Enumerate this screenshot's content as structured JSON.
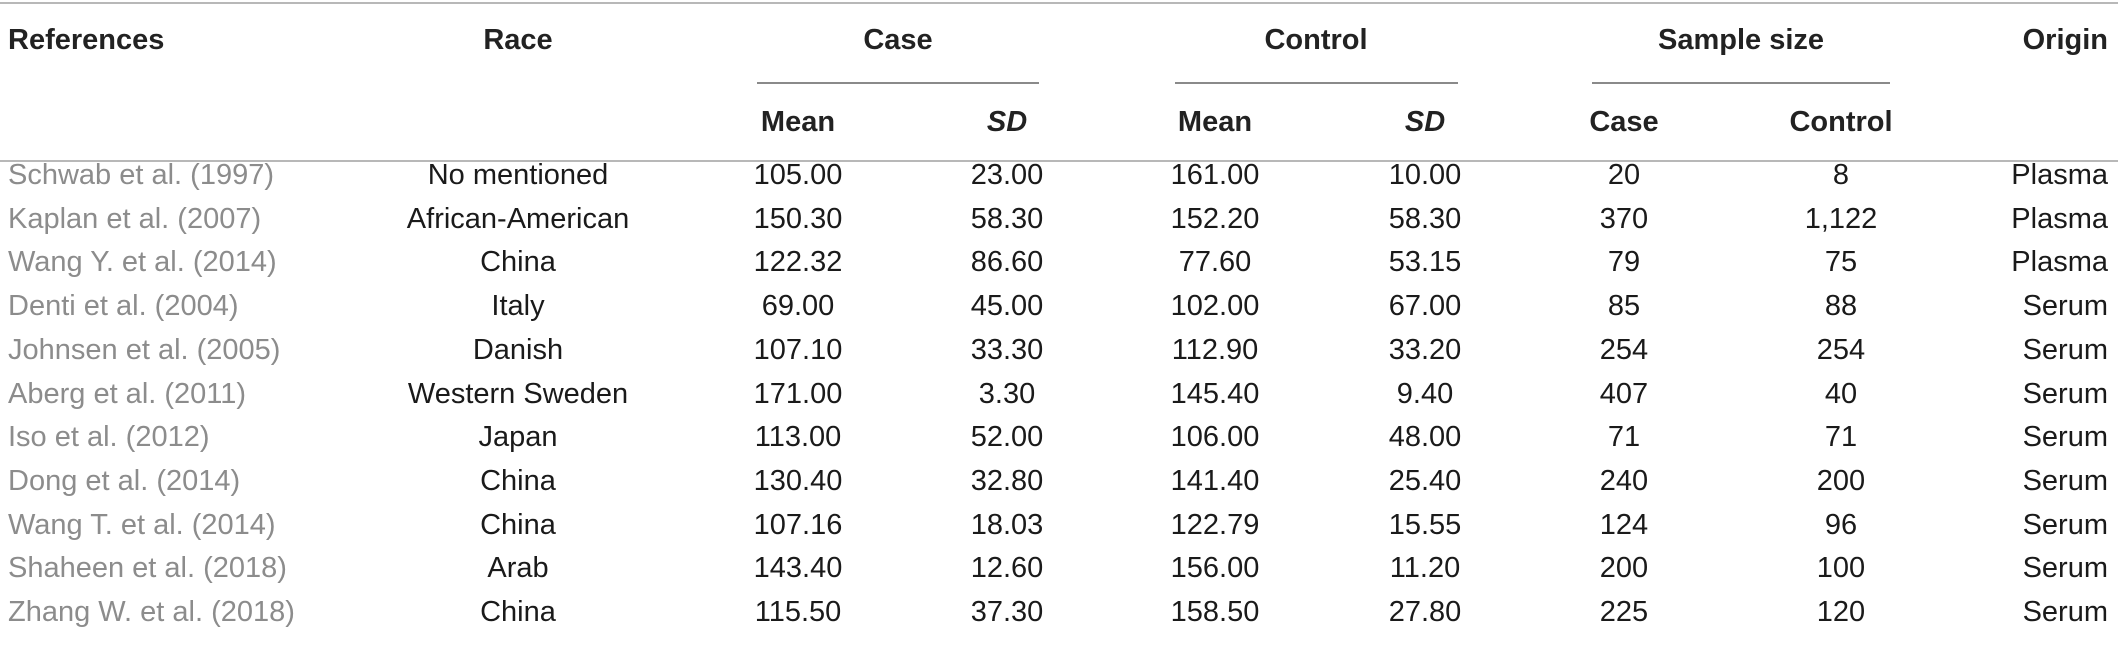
{
  "table": {
    "headers": {
      "references": "References",
      "race": "Race",
      "case": "Case",
      "control": "Control",
      "sample_size": "Sample size",
      "origin": "Origin",
      "mean": "Mean",
      "sd": "SD",
      "case_sub": "Case",
      "control_sub": "Control"
    },
    "rows": [
      {
        "ref": "Schwab et al. (1997)",
        "race": "No mentioned",
        "case_mean": "105.00",
        "case_sd": "23.00",
        "ctrl_mean": "161.00",
        "ctrl_sd": "10.00",
        "n_case": "20",
        "n_ctrl": "8",
        "origin": "Plasma"
      },
      {
        "ref": "Kaplan et al. (2007)",
        "race": "African-American",
        "case_mean": "150.30",
        "case_sd": "58.30",
        "ctrl_mean": "152.20",
        "ctrl_sd": "58.30",
        "n_case": "370",
        "n_ctrl": "1,122",
        "origin": "Plasma"
      },
      {
        "ref": "Wang Y. et al. (2014)",
        "race": "China",
        "case_mean": "122.32",
        "case_sd": "86.60",
        "ctrl_mean": "77.60",
        "ctrl_sd": "53.15",
        "n_case": "79",
        "n_ctrl": "75",
        "origin": "Plasma"
      },
      {
        "ref": "Denti et al. (2004)",
        "race": "Italy",
        "case_mean": "69.00",
        "case_sd": "45.00",
        "ctrl_mean": "102.00",
        "ctrl_sd": "67.00",
        "n_case": "85",
        "n_ctrl": "88",
        "origin": "Serum"
      },
      {
        "ref": "Johnsen et al. (2005)",
        "race": "Danish",
        "case_mean": "107.10",
        "case_sd": "33.30",
        "ctrl_mean": "112.90",
        "ctrl_sd": "33.20",
        "n_case": "254",
        "n_ctrl": "254",
        "origin": "Serum"
      },
      {
        "ref": "Aberg et al. (2011)",
        "race": "Western Sweden",
        "case_mean": "171.00",
        "case_sd": "3.30",
        "ctrl_mean": "145.40",
        "ctrl_sd": "9.40",
        "n_case": "407",
        "n_ctrl": "40",
        "origin": "Serum"
      },
      {
        "ref": "Iso et al. (2012)",
        "race": "Japan",
        "case_mean": "113.00",
        "case_sd": "52.00",
        "ctrl_mean": "106.00",
        "ctrl_sd": "48.00",
        "n_case": "71",
        "n_ctrl": "71",
        "origin": "Serum"
      },
      {
        "ref": "Dong et al. (2014)",
        "race": "China",
        "case_mean": "130.40",
        "case_sd": "32.80",
        "ctrl_mean": "141.40",
        "ctrl_sd": "25.40",
        "n_case": "240",
        "n_ctrl": "200",
        "origin": "Serum"
      },
      {
        "ref": "Wang T. et al. (2014)",
        "race": "China",
        "case_mean": "107.16",
        "case_sd": "18.03",
        "ctrl_mean": "122.79",
        "ctrl_sd": "15.55",
        "n_case": "124",
        "n_ctrl": "96",
        "origin": "Serum"
      },
      {
        "ref": "Shaheen et al. (2018)",
        "race": "Arab",
        "case_mean": "143.40",
        "case_sd": "12.60",
        "ctrl_mean": "156.00",
        "ctrl_sd": "11.20",
        "n_case": "200",
        "n_ctrl": "100",
        "origin": "Serum"
      },
      {
        "ref": "Zhang W. et al. (2018)",
        "race": "China",
        "case_mean": "115.50",
        "case_sd": "37.30",
        "ctrl_mean": "158.50",
        "ctrl_sd": "27.80",
        "n_case": "225",
        "n_ctrl": "120",
        "origin": "Serum"
      }
    ]
  }
}
